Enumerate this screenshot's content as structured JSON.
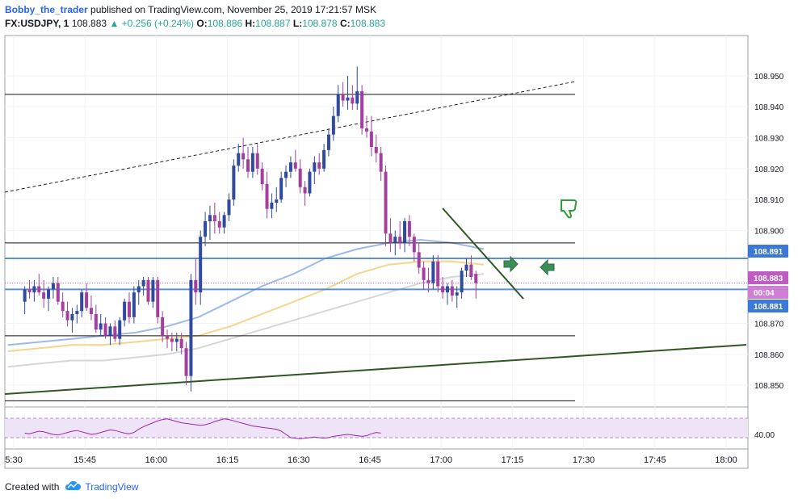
{
  "header": {
    "author": "Bobby_the_trader",
    "published": "published on TradingView.com, November 25, 2019 17:21:57 MSK",
    "symbol": "FX:USDJPY, 1",
    "last": "108.883",
    "change": "▲ +0.256 (+0.24%)",
    "o_label": "O:",
    "o_value": "108.886",
    "h_label": "H:",
    "h_value": "108.887",
    "l_label": "L:",
    "l_value": "108.878",
    "c_label": "C:",
    "c_value": "108.883"
  },
  "footer": {
    "created_with": "Created with",
    "brand": "TradingView"
  },
  "colors": {
    "bull": "#2f4a9e",
    "bear": "#a43fa0",
    "ma_blue": "#9db9ec",
    "ma_yellow": "#f5d58a",
    "ma_gray": "#d6d6d6",
    "green_line": "#2f5722",
    "level_blue": "#5b8fd8",
    "badge_blue": "#3c78d8",
    "badge_pink": "#bf5cc3",
    "rsi_line": "#9c27b0",
    "rsi_band": "#efe3f8"
  },
  "chart_data": {
    "type": "candlestick",
    "symbol": "FX:USDJPY",
    "interval": "1",
    "x_ticks": [
      "5:30",
      "15:45",
      "16:00",
      "16:15",
      "16:30",
      "16:45",
      "17:00",
      "17:15",
      "17:30",
      "17:45",
      "18:00"
    ],
    "y_ticks": [
      "108.950",
      "108.940",
      "108.930",
      "108.920",
      "108.910",
      "108.900",
      "108.870",
      "108.860",
      "108.850"
    ],
    "ylim": [
      108.843,
      108.963
    ],
    "x_start_minute": 15.45,
    "bar_minutes": 1,
    "price_badges": [
      {
        "value": 108.891,
        "label": "108.891",
        "kind": "blue"
      },
      {
        "value": 108.883,
        "label": "108.883",
        "kind": "pink"
      },
      {
        "value": 108.8795,
        "label": "00:04",
        "kind": "pink-dark"
      },
      {
        "value": 108.881,
        "label": "108.881",
        "kind": "blue"
      }
    ],
    "horizontal_levels": [
      {
        "value": 108.944,
        "color": "black"
      },
      {
        "value": 108.896,
        "color": "black"
      },
      {
        "value": 108.891,
        "color": "blue"
      },
      {
        "value": 108.881,
        "color": "blue"
      },
      {
        "value": 108.866,
        "color": "black"
      },
      {
        "value": 108.845,
        "color": "black"
      }
    ],
    "dotted_level": 108.883,
    "candles": [
      [
        108.877,
        108.882,
        108.873,
        108.881
      ],
      [
        108.881,
        108.884,
        108.878,
        108.88
      ],
      [
        108.88,
        108.884,
        108.877,
        108.882
      ],
      [
        108.882,
        108.886,
        108.879,
        108.88
      ],
      [
        108.88,
        108.884,
        108.875,
        108.878
      ],
      [
        108.878,
        108.882,
        108.874,
        108.881
      ],
      [
        108.881,
        108.885,
        108.878,
        108.883
      ],
      [
        108.883,
        108.885,
        108.876,
        108.877
      ],
      [
        108.877,
        108.88,
        108.872,
        108.874
      ],
      [
        108.874,
        108.877,
        108.869,
        108.871
      ],
      [
        108.871,
        108.875,
        108.867,
        108.873
      ],
      [
        108.873,
        108.876,
        108.87,
        108.874
      ],
      [
        108.874,
        108.881,
        108.872,
        108.88
      ],
      [
        108.88,
        108.883,
        108.874,
        108.875
      ],
      [
        108.875,
        108.879,
        108.871,
        108.873
      ],
      [
        108.873,
        108.876,
        108.867,
        108.868
      ],
      [
        108.868,
        108.873,
        108.866,
        108.87
      ],
      [
        108.87,
        108.872,
        108.865,
        108.866
      ],
      [
        108.866,
        108.87,
        108.863,
        108.869
      ],
      [
        108.869,
        108.871,
        108.864,
        108.865
      ],
      [
        108.865,
        108.872,
        108.863,
        108.871
      ],
      [
        108.871,
        108.878,
        108.869,
        108.877
      ],
      [
        108.877,
        108.88,
        108.87,
        108.872
      ],
      [
        108.872,
        108.882,
        108.87,
        108.88
      ],
      [
        108.88,
        108.884,
        108.876,
        108.882
      ],
      [
        108.882,
        108.885,
        108.879,
        108.884
      ],
      [
        108.884,
        108.885,
        108.876,
        108.877
      ],
      [
        108.877,
        108.885,
        108.875,
        108.884
      ],
      [
        108.884,
        108.885,
        108.87,
        108.872
      ],
      [
        108.872,
        108.874,
        108.864,
        108.866
      ],
      [
        108.866,
        108.868,
        108.862,
        108.865
      ],
      [
        108.865,
        108.867,
        108.861,
        108.864
      ],
      [
        108.864,
        108.867,
        108.861,
        108.865
      ],
      [
        108.865,
        108.867,
        108.86,
        108.862
      ],
      [
        108.862,
        108.864,
        108.85,
        108.853
      ],
      [
        108.853,
        108.886,
        108.848,
        108.884
      ],
      [
        108.884,
        108.891,
        108.876,
        108.88
      ],
      [
        108.88,
        108.9,
        108.876,
        108.898
      ],
      [
        108.898,
        108.906,
        108.895,
        108.903
      ],
      [
        108.903,
        108.908,
        108.897,
        108.905
      ],
      [
        108.905,
        108.909,
        108.899,
        108.903
      ],
      [
        108.903,
        108.906,
        108.899,
        108.901
      ],
      [
        108.901,
        108.906,
        108.899,
        108.905
      ],
      [
        108.905,
        108.912,
        108.903,
        108.91
      ],
      [
        108.91,
        108.923,
        108.908,
        108.921
      ],
      [
        108.921,
        108.928,
        108.919,
        108.925
      ],
      [
        108.925,
        108.93,
        108.92,
        108.923
      ],
      [
        108.923,
        108.927,
        108.917,
        108.919
      ],
      [
        108.919,
        108.927,
        108.917,
        108.925
      ],
      [
        108.925,
        108.928,
        108.918,
        108.92
      ],
      [
        108.92,
        108.922,
        108.913,
        108.915
      ],
      [
        108.915,
        108.919,
        108.904,
        108.907
      ],
      [
        108.907,
        108.912,
        108.904,
        108.909
      ],
      [
        108.909,
        108.914,
        108.906,
        108.91
      ],
      [
        108.91,
        108.919,
        108.909,
        108.917
      ],
      [
        108.917,
        108.921,
        108.914,
        108.919
      ],
      [
        108.919,
        108.924,
        108.917,
        108.922
      ],
      [
        108.922,
        108.926,
        108.919,
        108.92
      ],
      [
        108.92,
        108.923,
        108.912,
        108.914
      ],
      [
        108.914,
        108.916,
        108.908,
        108.912
      ],
      [
        108.912,
        108.92,
        108.911,
        108.919
      ],
      [
        108.919,
        108.924,
        108.915,
        108.922
      ],
      [
        108.922,
        108.925,
        108.918,
        108.92
      ],
      [
        108.92,
        108.928,
        108.919,
        108.926
      ],
      [
        108.926,
        108.933,
        108.924,
        108.931
      ],
      [
        108.931,
        108.94,
        108.929,
        108.937
      ],
      [
        108.937,
        108.947,
        108.935,
        108.944
      ],
      [
        108.944,
        108.948,
        108.94,
        108.942
      ],
      [
        108.942,
        108.95,
        108.939,
        108.943
      ],
      [
        108.943,
        108.947,
        108.939,
        108.941
      ],
      [
        108.941,
        108.953,
        108.939,
        108.945
      ],
      [
        108.945,
        108.947,
        108.931,
        108.933
      ],
      [
        108.933,
        108.937,
        108.93,
        108.932
      ],
      [
        108.932,
        108.937,
        108.924,
        108.927
      ],
      [
        108.927,
        108.931,
        108.922,
        108.925
      ],
      [
        108.925,
        108.927,
        108.916,
        108.919
      ],
      [
        108.919,
        108.921,
        108.895,
        108.899
      ],
      [
        108.899,
        108.904,
        108.893,
        108.896
      ],
      [
        108.896,
        108.9,
        108.892,
        108.898
      ],
      [
        108.898,
        108.903,
        108.894,
        108.896
      ],
      [
        108.896,
        108.904,
        108.893,
        108.903
      ],
      [
        108.903,
        108.905,
        108.895,
        108.898
      ],
      [
        108.898,
        108.899,
        108.89,
        108.893
      ],
      [
        108.893,
        108.896,
        108.886,
        108.888
      ],
      [
        108.888,
        108.89,
        108.881,
        108.884
      ],
      [
        108.884,
        108.888,
        108.88,
        108.883
      ],
      [
        108.883,
        108.892,
        108.881,
        108.89
      ],
      [
        108.89,
        108.892,
        108.88,
        108.882
      ],
      [
        108.882,
        108.885,
        108.878,
        108.88
      ],
      [
        108.88,
        108.883,
        108.876,
        108.882
      ],
      [
        108.882,
        108.884,
        108.877,
        108.879
      ],
      [
        108.879,
        108.882,
        108.875,
        108.88
      ],
      [
        108.88,
        108.888,
        108.878,
        108.887
      ],
      [
        108.887,
        108.891,
        108.885,
        108.889
      ],
      [
        108.889,
        108.892,
        108.884,
        108.885
      ],
      [
        108.886,
        108.887,
        108.878,
        108.883
      ]
    ],
    "moving_averages": [
      {
        "color": "ma_blue",
        "values": [
          108.863,
          108.864,
          108.865,
          108.866,
          108.867,
          108.869,
          108.872,
          108.877,
          108.882,
          108.886,
          108.891,
          108.894,
          108.896,
          108.897,
          108.896,
          108.894
        ]
      },
      {
        "color": "ma_yellow",
        "values": [
          108.861,
          108.862,
          108.863,
          108.863,
          108.864,
          108.865,
          108.866,
          108.869,
          108.873,
          108.877,
          108.881,
          108.886,
          108.889,
          108.89,
          108.89,
          108.889
        ]
      },
      {
        "color": "ma_gray",
        "values": [
          108.856,
          108.857,
          108.858,
          108.858,
          108.859,
          108.86,
          108.862,
          108.865,
          108.868,
          108.871,
          108.874,
          108.877,
          108.88,
          108.883,
          108.885,
          108.886
        ]
      }
    ],
    "rsi": {
      "ticks": [
        "40.00"
      ],
      "range": [
        20,
        80
      ],
      "band": [
        35,
        65
      ],
      "values": [
        42,
        41,
        43,
        45,
        44,
        42,
        40,
        39,
        41,
        43,
        45,
        46,
        44,
        42,
        40,
        41,
        43,
        45,
        47,
        46,
        44,
        42,
        41,
        43,
        48,
        52,
        55,
        58,
        61,
        63,
        64,
        62,
        60,
        58,
        57,
        56,
        55,
        54,
        55,
        57,
        60,
        62,
        64,
        63,
        61,
        59,
        57,
        55,
        53,
        52,
        51,
        50,
        49,
        48,
        45,
        40,
        35,
        34,
        33,
        34,
        35,
        36,
        35,
        34,
        35,
        37,
        38,
        39,
        40,
        39,
        38,
        37,
        38,
        41,
        43,
        42
      ]
    }
  }
}
